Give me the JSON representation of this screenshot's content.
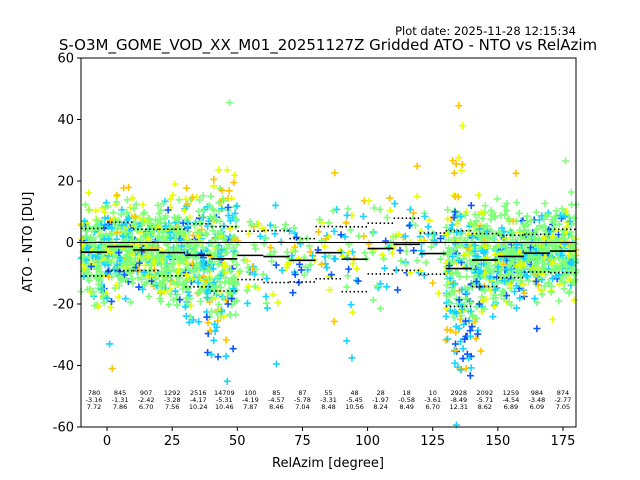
{
  "plot_date": "Plot date: 2025-11-28 12:15:34",
  "chart_data": {
    "type": "scatter",
    "title": "S-O3M_GOME_VOD_XX_M01_20251127Z Gridded ATO - NTO vs RelAzim",
    "xlabel": "RelAzim [degree]",
    "ylabel": "ATO - NTO [DU]",
    "xlim": [
      -10,
      180
    ],
    "ylim": [
      -60,
      60
    ],
    "xticks": [
      0,
      25,
      50,
      75,
      100,
      125,
      150,
      175
    ],
    "yticks": [
      -60,
      -40,
      -20,
      0,
      20,
      40,
      60
    ],
    "colors": {
      "dense": "#7dff7a",
      "mid": "#16d4ff",
      "low": "#0d55ff",
      "yellow": "#e6ff00",
      "orange": "#ffc400",
      "bin_line": "#000000"
    },
    "bins": [
      {
        "x0": -10,
        "x1": 0,
        "count": "780",
        "mean": "-3.16",
        "std": "7.72",
        "mean_v": -3.16,
        "std_v": 7.72
      },
      {
        "x0": 0,
        "x1": 10,
        "count": "845",
        "mean": "-1.31",
        "std": "7.86",
        "mean_v": -1.31,
        "std_v": 7.86
      },
      {
        "x0": 10,
        "x1": 20,
        "count": "907",
        "mean": "-2.42",
        "std": "6.70",
        "mean_v": -2.42,
        "std_v": 6.7
      },
      {
        "x0": 20,
        "x1": 30,
        "count": "1292",
        "mean": "-3.28",
        "std": "7.56",
        "mean_v": -3.28,
        "std_v": 7.56
      },
      {
        "x0": 30,
        "x1": 40,
        "count": "2516",
        "mean": "-4.17",
        "std": "10.24",
        "mean_v": -4.17,
        "std_v": 10.24
      },
      {
        "x0": 40,
        "x1": 50,
        "count": "14709",
        "mean": "-5.31",
        "std": "10.46",
        "mean_v": -5.31,
        "std_v": 10.46
      },
      {
        "x0": 50,
        "x1": 60,
        "count": "100",
        "mean": "-4.19",
        "std": "7.87",
        "mean_v": -4.19,
        "std_v": 7.87
      },
      {
        "x0": 60,
        "x1": 70,
        "count": "85",
        "mean": "-4.57",
        "std": "8.46",
        "mean_v": -4.57,
        "std_v": 8.46
      },
      {
        "x0": 70,
        "x1": 80,
        "count": "87",
        "mean": "-5.78",
        "std": "7.04",
        "mean_v": -5.78,
        "std_v": 7.04
      },
      {
        "x0": 80,
        "x1": 90,
        "count": "55",
        "mean": "-3.31",
        "std": "8.48",
        "mean_v": -3.31,
        "std_v": 8.48
      },
      {
        "x0": 90,
        "x1": 100,
        "count": "48",
        "mean": "-5.45",
        "std": "10.56",
        "mean_v": -5.45,
        "std_v": 10.56
      },
      {
        "x0": 100,
        "x1": 110,
        "count": "28",
        "mean": "-1.97",
        "std": "8.24",
        "mean_v": -1.97,
        "std_v": 8.24
      },
      {
        "x0": 110,
        "x1": 120,
        "count": "18",
        "mean": "-0.58",
        "std": "8.49",
        "mean_v": -0.58,
        "std_v": 8.49
      },
      {
        "x0": 120,
        "x1": 130,
        "count": "10",
        "mean": "-3.61",
        "std": "6.70",
        "mean_v": -3.61,
        "std_v": 6.7
      },
      {
        "x0": 130,
        "x1": 140,
        "count": "2928",
        "mean": "-8.49",
        "std": "12.31",
        "mean_v": -8.49,
        "std_v": 12.31
      },
      {
        "x0": 140,
        "x1": 150,
        "count": "2092",
        "mean": "-5.71",
        "std": "8.62",
        "mean_v": -5.71,
        "std_v": 8.62
      },
      {
        "x0": 150,
        "x1": 160,
        "count": "1259",
        "mean": "-4.54",
        "std": "6.89",
        "mean_v": -4.54,
        "std_v": 6.89
      },
      {
        "x0": 160,
        "x1": 170,
        "count": "984",
        "mean": "-3.48",
        "std": "6.09",
        "mean_v": -3.48,
        "std_v": 6.09
      },
      {
        "x0": 170,
        "x1": 180,
        "count": "874",
        "mean": "-2.77",
        "std": "7.05",
        "mean_v": -2.77,
        "std_v": 7.05
      }
    ],
    "point_clusters": [
      {
        "x_min": -10,
        "x_max": 49,
        "y_min": -20,
        "y_max": 15,
        "density": "high"
      },
      {
        "x_min": 30,
        "x_max": 49,
        "y_min": -37,
        "y_max": 33,
        "density": "high"
      },
      {
        "x_min": 49,
        "x_max": 133,
        "y_min": -25,
        "y_max": 15,
        "density": "sparse"
      },
      {
        "x_min": 133,
        "x_max": 180,
        "y_min": -45,
        "y_max": 25,
        "density": "high"
      }
    ],
    "notable_points": [
      {
        "x": 47,
        "y": 45.5
      },
      {
        "x": 135,
        "y": 44.5
      },
      {
        "x": 136.5,
        "y": 38
      },
      {
        "x": 2,
        "y": -41
      },
      {
        "x": 1,
        "y": -33
      },
      {
        "x": 65,
        "y": -39.5
      },
      {
        "x": 92,
        "y": -32
      },
      {
        "x": 94,
        "y": -37.5
      },
      {
        "x": 122,
        "y": 8.5
      },
      {
        "x": 119,
        "y": 15
      },
      {
        "x": 171,
        "y": -25
      },
      {
        "x": 165,
        "y": -28
      },
      {
        "x": 176,
        "y": 26.5
      },
      {
        "x": 157,
        "y": 22.5
      }
    ]
  }
}
